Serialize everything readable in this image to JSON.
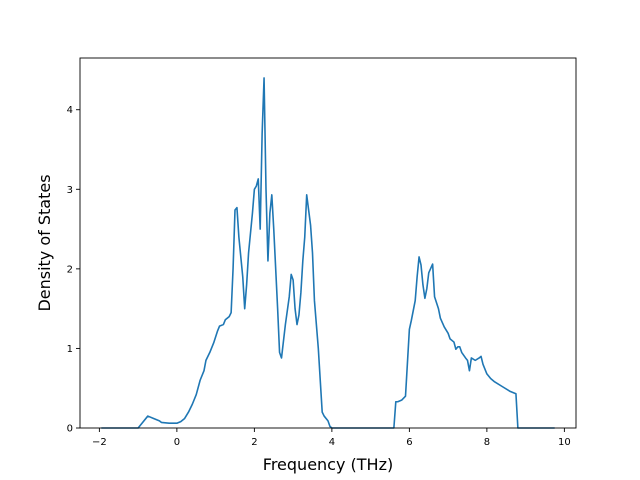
{
  "chart_data": {
    "type": "line",
    "title": "",
    "xlabel": "Frequency (THz)",
    "ylabel": "Density of States",
    "xlim": [
      -2.5,
      10.3
    ],
    "ylim": [
      0,
      4.65
    ],
    "xticks": [
      -2,
      0,
      2,
      4,
      6,
      8,
      10
    ],
    "yticks": [
      0,
      1,
      2,
      3,
      4
    ],
    "grid": false,
    "legend": "none",
    "series": [
      {
        "color": "#1f77b4",
        "points": [
          [
            -1.95,
            0
          ],
          [
            -1.0,
            0
          ],
          [
            -0.95,
            0.03
          ],
          [
            -0.75,
            0.15
          ],
          [
            -0.6,
            0.12
          ],
          [
            -0.45,
            0.09
          ],
          [
            -0.4,
            0.07
          ],
          [
            -0.2,
            0.06
          ],
          [
            0.0,
            0.06
          ],
          [
            0.1,
            0.08
          ],
          [
            0.2,
            0.12
          ],
          [
            0.3,
            0.2
          ],
          [
            0.4,
            0.3
          ],
          [
            0.5,
            0.42
          ],
          [
            0.6,
            0.6
          ],
          [
            0.7,
            0.72
          ],
          [
            0.75,
            0.85
          ],
          [
            0.85,
            0.95
          ],
          [
            0.95,
            1.07
          ],
          [
            1.05,
            1.22
          ],
          [
            1.1,
            1.28
          ],
          [
            1.2,
            1.3
          ],
          [
            1.25,
            1.36
          ],
          [
            1.35,
            1.4
          ],
          [
            1.4,
            1.45
          ],
          [
            1.45,
            2.0
          ],
          [
            1.5,
            2.74
          ],
          [
            1.55,
            2.77
          ],
          [
            1.6,
            2.4
          ],
          [
            1.7,
            1.9
          ],
          [
            1.75,
            1.5
          ],
          [
            1.8,
            1.8
          ],
          [
            1.85,
            2.2
          ],
          [
            1.95,
            2.7
          ],
          [
            2.0,
            3.0
          ],
          [
            2.05,
            3.04
          ],
          [
            2.1,
            3.13
          ],
          [
            2.15,
            2.5
          ],
          [
            2.2,
            3.7
          ],
          [
            2.25,
            4.4
          ],
          [
            2.3,
            3.0
          ],
          [
            2.35,
            2.1
          ],
          [
            2.4,
            2.7
          ],
          [
            2.45,
            2.93
          ],
          [
            2.5,
            2.5
          ],
          [
            2.6,
            1.5
          ],
          [
            2.65,
            0.95
          ],
          [
            2.7,
            0.88
          ],
          [
            2.8,
            1.3
          ],
          [
            2.9,
            1.65
          ],
          [
            2.95,
            1.93
          ],
          [
            3.0,
            1.86
          ],
          [
            3.05,
            1.5
          ],
          [
            3.1,
            1.3
          ],
          [
            3.15,
            1.42
          ],
          [
            3.2,
            1.7
          ],
          [
            3.25,
            2.1
          ],
          [
            3.3,
            2.4
          ],
          [
            3.35,
            2.93
          ],
          [
            3.45,
            2.55
          ],
          [
            3.5,
            2.2
          ],
          [
            3.55,
            1.6
          ],
          [
            3.65,
            1.0
          ],
          [
            3.75,
            0.2
          ],
          [
            3.8,
            0.15
          ],
          [
            3.9,
            0.09
          ],
          [
            3.95,
            0.02
          ],
          [
            4.0,
            0
          ],
          [
            5.6,
            0
          ],
          [
            5.65,
            0.33
          ],
          [
            5.7,
            0.33
          ],
          [
            5.8,
            0.35
          ],
          [
            5.9,
            0.4
          ],
          [
            6.0,
            1.24
          ],
          [
            6.05,
            1.35
          ],
          [
            6.15,
            1.6
          ],
          [
            6.2,
            1.9
          ],
          [
            6.25,
            2.15
          ],
          [
            6.3,
            2.05
          ],
          [
            6.35,
            1.8
          ],
          [
            6.4,
            1.63
          ],
          [
            6.45,
            1.75
          ],
          [
            6.5,
            1.95
          ],
          [
            6.6,
            2.06
          ],
          [
            6.65,
            1.65
          ],
          [
            6.75,
            1.5
          ],
          [
            6.8,
            1.38
          ],
          [
            6.9,
            1.27
          ],
          [
            7.0,
            1.19
          ],
          [
            7.05,
            1.12
          ],
          [
            7.15,
            1.08
          ],
          [
            7.2,
            0.99
          ],
          [
            7.25,
            1.02
          ],
          [
            7.3,
            1.02
          ],
          [
            7.35,
            0.95
          ],
          [
            7.45,
            0.88
          ],
          [
            7.5,
            0.85
          ],
          [
            7.55,
            0.72
          ],
          [
            7.6,
            0.88
          ],
          [
            7.7,
            0.85
          ],
          [
            7.8,
            0.88
          ],
          [
            7.85,
            0.9
          ],
          [
            7.9,
            0.8
          ],
          [
            8.0,
            0.68
          ],
          [
            8.1,
            0.62
          ],
          [
            8.2,
            0.58
          ],
          [
            8.4,
            0.52
          ],
          [
            8.6,
            0.46
          ],
          [
            8.75,
            0.43
          ],
          [
            8.8,
            0
          ],
          [
            9.75,
            0
          ]
        ]
      }
    ]
  }
}
